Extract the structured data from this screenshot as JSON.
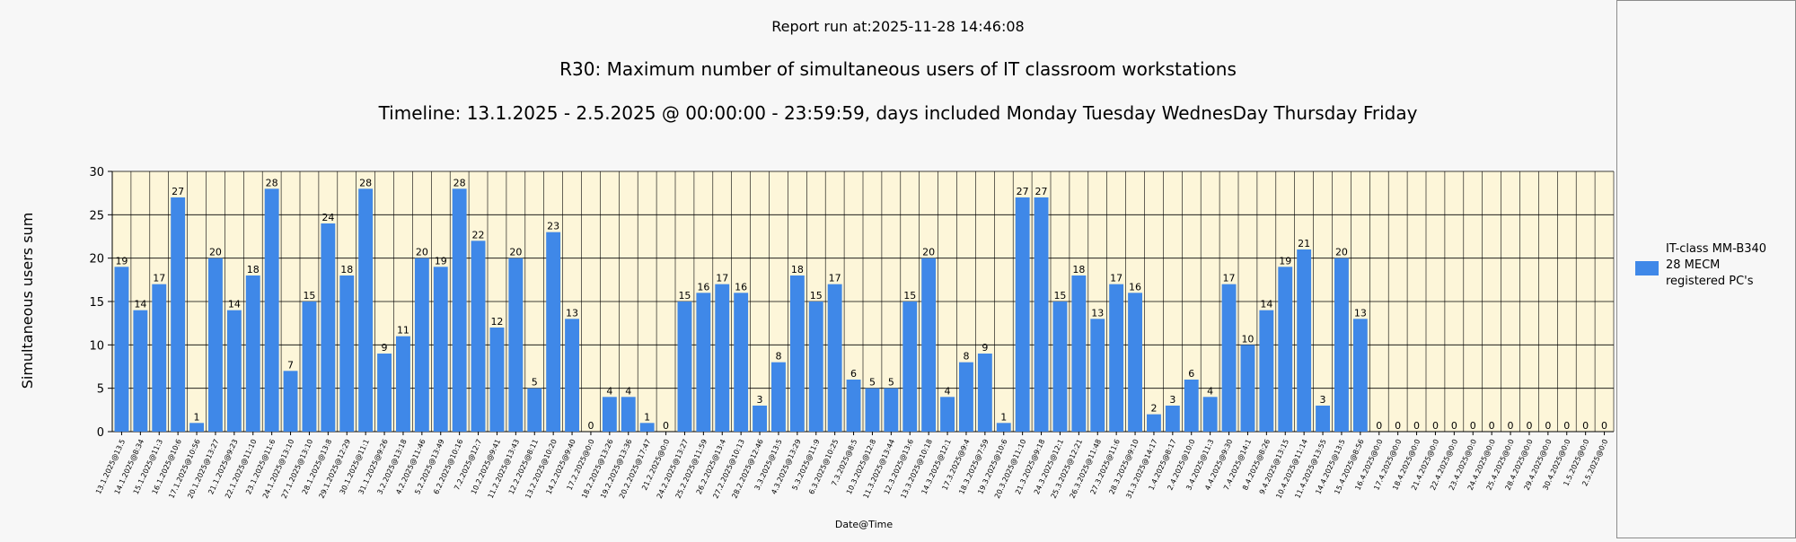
{
  "report_run": "Report run at:2025-11-28 14:46:08",
  "colors": {
    "bar": "#3f88e8",
    "plot_background": "#fdf6d9",
    "gridline": "#000000",
    "page_background": "#f7f7f7"
  },
  "chart_data": {
    "type": "bar",
    "title": "R30: Maximum number of simultaneous users of IT classroom workstations",
    "subtitle": "Timeline: 13.1.2025  - 2.5.2025  @  00:00:00 -  23:59:59, days included Monday Tuesday WednesDay Thursday Friday",
    "xlabel": "Date@Time",
    "ylabel": "Simultaneous users sum",
    "ylim": [
      0,
      30
    ],
    "yticks": [
      0,
      5,
      10,
      15,
      20,
      25,
      30
    ],
    "grid": true,
    "legend_position": "right",
    "categories": [
      "13.1.2025@13.5",
      "14.1.2025@8:34",
      "15.1.2025@11:3",
      "16.1.2025@10:6",
      "17.1.2025@10:56",
      "20.1.2025@13:27",
      "21.1.2025@9:23",
      "22.1.2025@11:10",
      "23.1.2025@11:6",
      "24.1.2025@13:10",
      "27.1.2025@13:10",
      "28.1.2025@13:8",
      "29.1.2025@12:29",
      "30.1.2025@11:1",
      "31.1.2025@9:26",
      "3.2.2025@13:18",
      "4.2.2025@11:46",
      "5.2.2025@13:49",
      "6.2.2025@10:16",
      "7.2.2025@12:7",
      "10.2.2025@9:41",
      "11.2.2025@13:43",
      "12.2.2025@8:11",
      "13.2.2025@10:20",
      "14.2.2025@9:40",
      "17.2.2025@0:0",
      "18.2.2025@13:26",
      "19.2.2025@13:36",
      "20.2.2025@17:47",
      "21.2.2025@0:0",
      "24.2.2025@13:27",
      "25.2.2025@11:59",
      "26.2.2025@13:4",
      "27.2.2025@10:13",
      "28.2.2025@12:46",
      "3.3.2025@13:5",
      "4.3.2025@13:29",
      "5.3.2025@11:9",
      "6.3.2025@10:25",
      "7.3.2025@8:5",
      "10.3.2025@12:8",
      "11.3.2025@13:44",
      "12.3.2025@13:6",
      "13.3.2025@10:18",
      "14.3.2025@12:1",
      "17.3.2025@9:4",
      "18.3.2025@7:59",
      "19.3.2025@10:6",
      "20.3.2025@11:10",
      "21.3.2025@9:18",
      "24.3.2025@12:1",
      "25.3.2025@12:21",
      "26.3.2025@11:48",
      "27.3.2025@11:6",
      "28.3.2025@9:10",
      "31.3.2025@14:17",
      "1.4.2025@8:17",
      "2.4.2025@10:0",
      "3.4.2025@11:3",
      "4.4.2025@9:30",
      "7.4.2025@14:1",
      "8.4.2025@8:26",
      "9.4.2025@13:15",
      "10.4.2025@11:14",
      "11.4.2025@13:55",
      "14.4.2025@13:5",
      "15.4.2025@8:56",
      "16.4.2025@0:0",
      "17.4.2025@0:0",
      "18.4.2025@0:0",
      "21.4.2025@0:0",
      "22.4.2025@0:0",
      "23.4.2025@0:0",
      "24.4.2025@0:0",
      "25.4.2025@0:0",
      "28.4.2025@0:0",
      "29.4.2025@0:0",
      "30.4.2025@0:0",
      "1.5.2025@0:0",
      "2.5.2025@0:0"
    ],
    "series": [
      {
        "name": "IT-class MM-B340\n28 MECM\nregistered PC's",
        "values": [
          19,
          14,
          17,
          27,
          1,
          20,
          14,
          18,
          28,
          7,
          15,
          24,
          18,
          28,
          9,
          11,
          20,
          19,
          28,
          22,
          12,
          20,
          5,
          23,
          13,
          0,
          4,
          4,
          1,
          0,
          15,
          16,
          17,
          16,
          3,
          8,
          18,
          15,
          17,
          6,
          5,
          5,
          15,
          20,
          4,
          8,
          9,
          1,
          27,
          27,
          15,
          18,
          13,
          17,
          16,
          2,
          3,
          6,
          4,
          17,
          10,
          14,
          19,
          21,
          3,
          20,
          13,
          0,
          0,
          0,
          0,
          0,
          0,
          0,
          0,
          0,
          0,
          0,
          0,
          0
        ]
      }
    ]
  }
}
